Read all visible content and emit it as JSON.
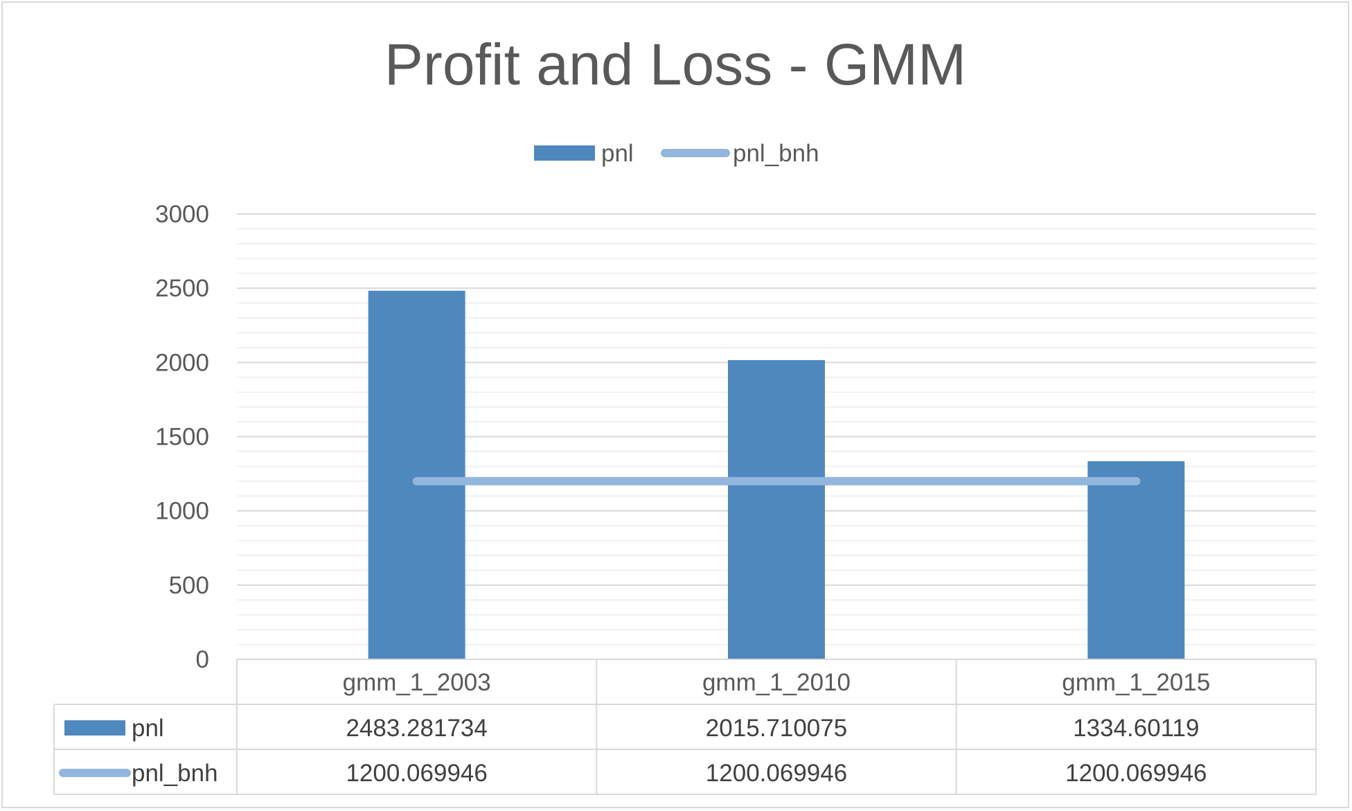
{
  "chart_data": {
    "type": "bar",
    "title": "Profit and Loss - GMM",
    "categories": [
      "gmm_1_2003",
      "gmm_1_2010",
      "gmm_1_2015"
    ],
    "series": [
      {
        "name": "pnl",
        "kind": "bar",
        "color": "#4f88bd",
        "values": [
          2483.281734,
          2015.710075,
          1334.60119
        ],
        "table_values": [
          "2483.281734",
          "2015.710075",
          "1334.60119"
        ]
      },
      {
        "name": "pnl_bnh",
        "kind": "line",
        "color": "#93b6de",
        "values": [
          1200.069946,
          1200.069946,
          1200.069946
        ],
        "table_values": [
          "1200.069946",
          "1200.069946",
          "1200.069946"
        ]
      }
    ],
    "y_ticks": [
      "0",
      "500",
      "1000",
      "1500",
      "2000",
      "2500",
      "3000"
    ],
    "ylim": [
      0,
      3000
    ],
    "grid": true,
    "minor_grid": true,
    "legend_position": "top",
    "data_table": true
  }
}
